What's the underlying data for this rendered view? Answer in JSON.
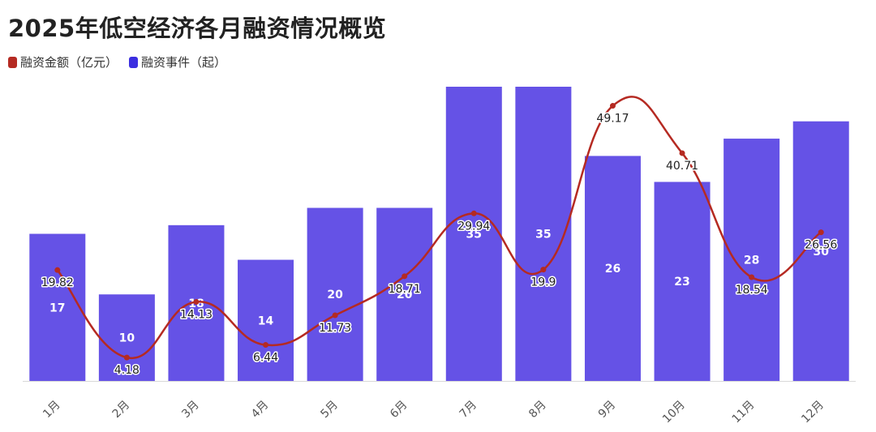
{
  "title": "2025年低空经济各月融资情况概览",
  "legend": [
    {
      "label": "融资金额（亿元）",
      "color": "#b52a22"
    },
    {
      "label": "融资事件（起）",
      "color": "#3b2ee0"
    }
  ],
  "chart_data": {
    "type": "bar+line",
    "categories": [
      "1月",
      "2月",
      "3月",
      "4月",
      "5月",
      "6月",
      "7月",
      "8月",
      "9月",
      "10月",
      "11月",
      "12月"
    ],
    "series": [
      {
        "name": "融资事件（起）",
        "type": "bar",
        "color": "#6552e6",
        "values": [
          17,
          10,
          18,
          14,
          20,
          20,
          35,
          35,
          26,
          23,
          28,
          30
        ]
      },
      {
        "name": "融资金额（亿元）",
        "type": "line",
        "color": "#b52a22",
        "values": [
          19.82,
          4.18,
          14.13,
          6.44,
          11.73,
          18.71,
          29.94,
          19.9,
          49.17,
          40.71,
          18.54,
          26.56
        ]
      }
    ],
    "bar_axis_max": 34,
    "line_axis_max": 52,
    "grid": false
  }
}
